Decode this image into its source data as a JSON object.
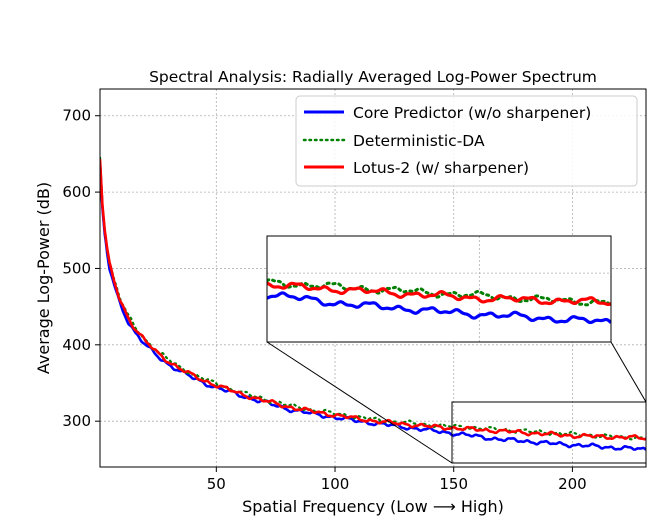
{
  "chart_data": {
    "type": "line",
    "title": "Spectral Analysis: Radially Averaged Log-Power Spectrum",
    "xlabel": "Spatial Frequency (Low ⟶ High)",
    "ylabel": "Average Log-Power (dB)",
    "xlim": [
      1,
      231
    ],
    "ylim": [
      240,
      735
    ],
    "xticks": [
      "50",
      "100",
      "150",
      "200"
    ],
    "yticks": [
      "300",
      "400",
      "500",
      "600",
      "700"
    ],
    "grid": true,
    "legend_position": "top-right",
    "series": [
      {
        "name": "Core Predictor (w/o sharpener)",
        "color": "#0000ff",
        "style": "solid",
        "x": [
          1,
          2,
          3,
          4,
          5,
          7,
          9,
          11,
          13,
          16,
          20,
          25,
          30,
          35,
          40,
          45,
          50,
          60,
          70,
          80,
          90,
          100,
          110,
          120,
          130,
          140,
          150,
          160,
          170,
          180,
          190,
          200,
          210,
          220,
          231
        ],
        "y": [
          640,
          580,
          545,
          520,
          500,
          478,
          458,
          443,
          430,
          415,
          400,
          386,
          374,
          365,
          357,
          350,
          344,
          334,
          325,
          316,
          310,
          305,
          300,
          296,
          292,
          288,
          284,
          280,
          276,
          274,
          271,
          269,
          267,
          265,
          263
        ]
      },
      {
        "name": "Deterministic-DA",
        "color": "#008000",
        "style": "dotted",
        "x": [
          1,
          2,
          3,
          4,
          5,
          7,
          9,
          11,
          13,
          16,
          20,
          25,
          30,
          35,
          40,
          45,
          50,
          60,
          70,
          80,
          90,
          100,
          110,
          120,
          130,
          140,
          150,
          160,
          170,
          180,
          190,
          200,
          210,
          220,
          231
        ],
        "y": [
          645,
          586,
          552,
          527,
          507,
          485,
          465,
          450,
          437,
          422,
          407,
          392,
          380,
          370,
          362,
          355,
          349,
          338,
          329,
          321,
          315,
          310,
          305,
          301,
          298,
          295,
          293,
          291,
          289,
          287,
          285,
          283,
          281,
          279,
          278
        ]
      },
      {
        "name": "Lotus-2 (w/ sharpener)",
        "color": "#ff0000",
        "style": "solid",
        "x": [
          1,
          2,
          3,
          4,
          5,
          7,
          9,
          11,
          13,
          16,
          20,
          25,
          30,
          35,
          40,
          45,
          50,
          60,
          70,
          80,
          90,
          100,
          110,
          120,
          130,
          140,
          150,
          160,
          170,
          180,
          190,
          200,
          210,
          220,
          231
        ],
        "y": [
          643,
          584,
          550,
          525,
          505,
          483,
          463,
          448,
          435,
          420,
          405,
          390,
          378,
          368,
          360,
          353,
          347,
          336,
          327,
          319,
          313,
          308,
          303,
          299,
          296,
          293,
          291,
          289,
          287,
          285,
          283,
          281,
          280,
          279,
          278
        ]
      }
    ],
    "inset": {
      "xlim": [
        150,
        231
      ],
      "ylim": [
        248,
        328
      ],
      "zoom_indicator": true
    }
  }
}
